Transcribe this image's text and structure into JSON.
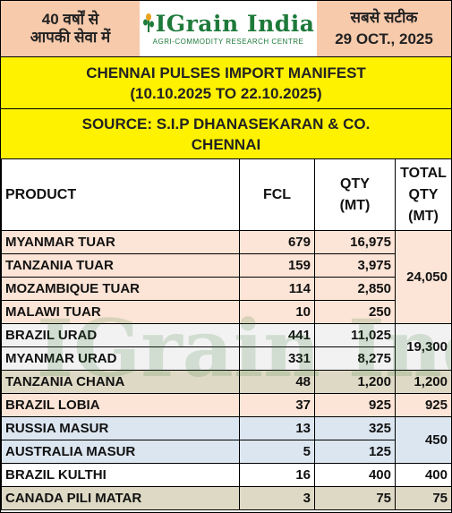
{
  "header": {
    "left_line1": "40 वर्षों से",
    "left_line2": "आपकी सेवा में",
    "logo_text": "IGrain India",
    "logo_tagline": "AGRI-COMMODITY RESEARCH CENTRE",
    "right_line1": "सबसे सटीक",
    "right_date": "29 OCT., 2025"
  },
  "title": {
    "line1": "CHENNAI PULSES IMPORT MANIFEST",
    "line2": "(10.10.2025 TO 22.10.2025)"
  },
  "source": {
    "line1": "SOURCE: S.I.P DHANASEKARAN & CO.",
    "line2": "CHENNAI"
  },
  "watermark": "IGrain India",
  "table": {
    "headers": {
      "product": "PRODUCT",
      "fcl": "FCL",
      "qty_1": "QTY",
      "qty_2": "(MT)",
      "total_1": "TOTAL",
      "total_2": "QTY",
      "total_3": "(MT)"
    },
    "rows": [
      {
        "product": "MYANMAR TUAR",
        "fcl": "679",
        "qty": "16,975"
      },
      {
        "product": "TANZANIA TUAR",
        "fcl": "159",
        "qty": "3,975"
      },
      {
        "product": "MOZAMBIQUE TUAR",
        "fcl": "114",
        "qty": "2,850"
      },
      {
        "product": "MALAWI TUAR",
        "fcl": "10",
        "qty": "250"
      },
      {
        "product": "BRAZIL URAD",
        "fcl": "441",
        "qty": "11,025"
      },
      {
        "product": "MYANMAR URAD",
        "fcl": "331",
        "qty": "8,275"
      },
      {
        "product": "TANZANIA CHANA",
        "fcl": "48",
        "qty": "1,200"
      },
      {
        "product": "BRAZIL LOBIA",
        "fcl": "37",
        "qty": "925"
      },
      {
        "product": "RUSSIA MASUR",
        "fcl": "13",
        "qty": "325"
      },
      {
        "product": "AUSTRALIA MASUR",
        "fcl": "5",
        "qty": "125"
      },
      {
        "product": "BRAZIL KULTHI",
        "fcl": "16",
        "qty": "400"
      },
      {
        "product": "CANADA PILI MATAR",
        "fcl": "3",
        "qty": "75"
      }
    ],
    "totals": {
      "tuar": "24,050",
      "urad": "19,300",
      "chana": "1,200",
      "lobia": "925",
      "masur": "450",
      "kulthi": "400",
      "pili_matar": "75"
    }
  },
  "colors": {
    "header_peach": "#f7caac",
    "title_yellow": "#fff200",
    "tuar_rows": "#fce4d6",
    "urad_rows": "#f2f2f2",
    "chana_row": "#ddd9c4",
    "lobia_row": "#fce4d6",
    "masur_rows": "#dce6f1",
    "logo_green": "#1e7a3a"
  }
}
